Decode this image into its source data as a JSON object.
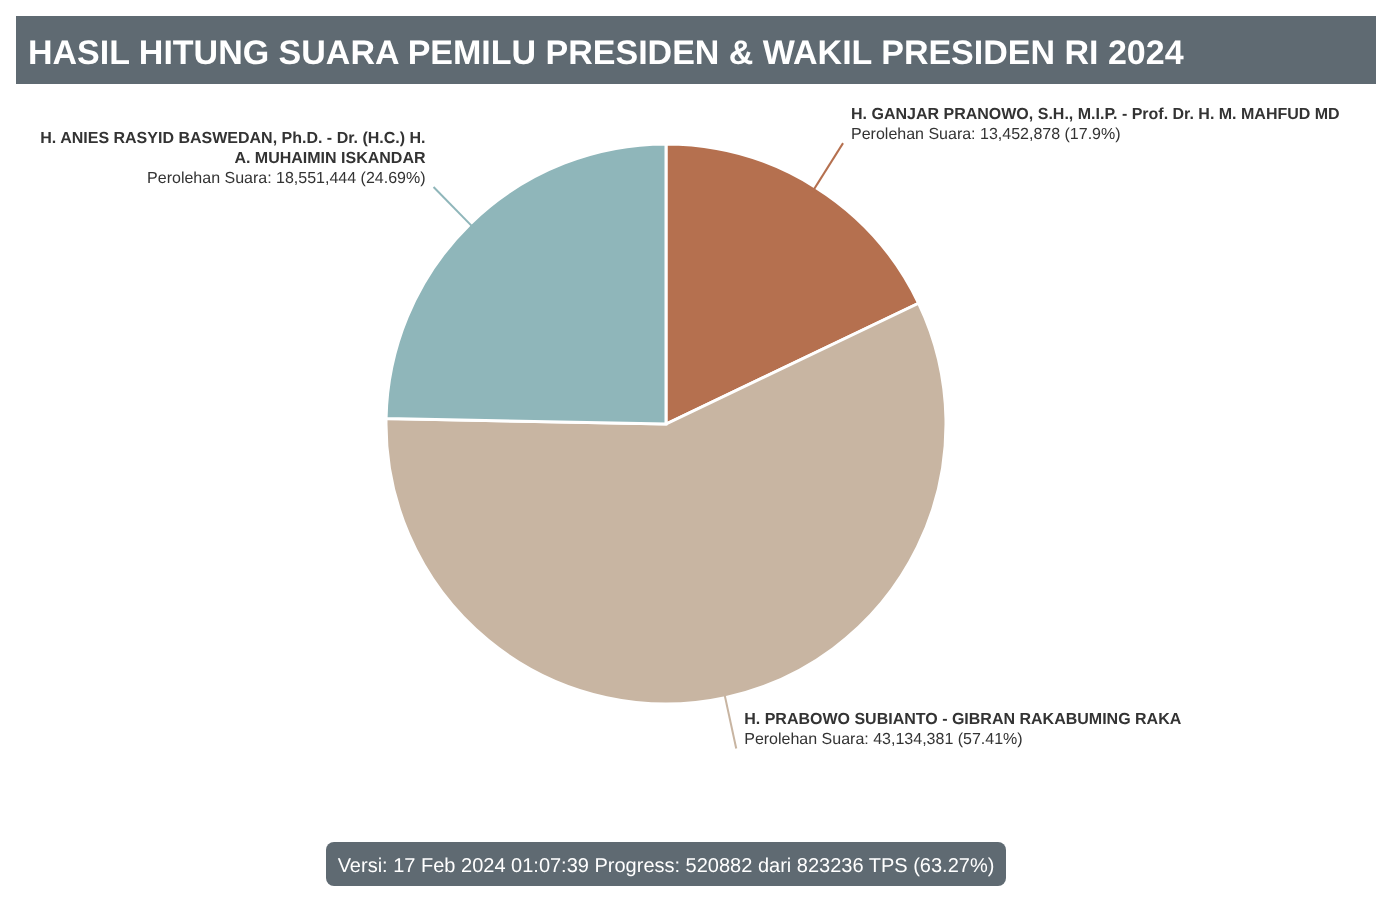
{
  "chart_data": {
    "type": "pie",
    "title": "HASIL HITUNG SUARA PEMILU PRESIDEN & WAKIL PRESIDEN RI 2024",
    "categories": [
      "H. GANJAR PRANOWO, S.H., M.I.P. - Prof. Dr. H. M. MAHFUD MD",
      "H. PRABOWO SUBIANTO - GIBRAN RAKABUMING RAKA",
      "H. ANIES RASYID BASWEDAN, Ph.D. - Dr. (H.C.) H. A. MUHAIMIN ISKANDAR"
    ],
    "values": [
      13452878,
      43134381,
      18551444
    ],
    "colors": [
      "#b5704f",
      "#c8b5a2",
      "#8fb6ba"
    ],
    "value_labels": [
      "Perolehan Suara: 13,452,878 (17.9%)",
      "Perolehan Suara: 43,134,381 (57.41%)",
      "Perolehan Suara: 18,551,444 (24.69%)"
    ],
    "annotations": [
      "Versi: 17 Feb 2024 01:07:39 Progress: 520882 dari 823236 TPS (63.27%)"
    ]
  }
}
